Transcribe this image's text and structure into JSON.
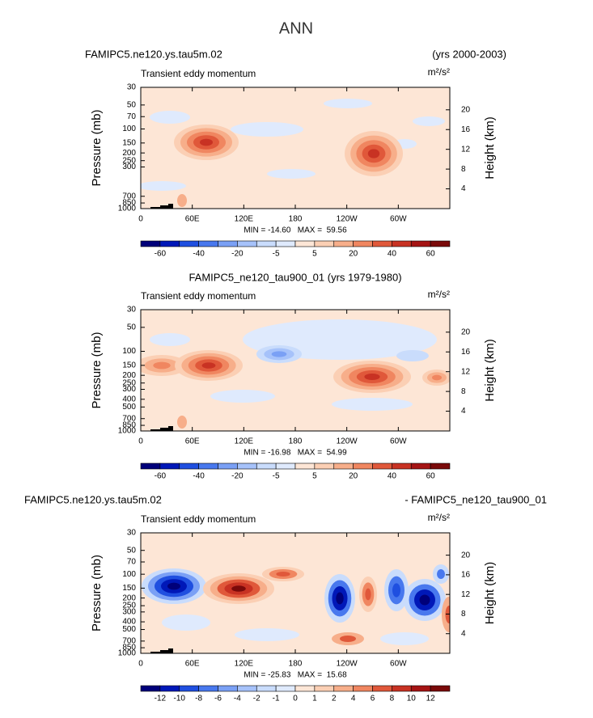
{
  "title": "ANN",
  "chart_data": [
    {
      "type": "contour",
      "title_left": "FAMIPC5.ne120.ys.tau5m.02",
      "title_right": "(yrs 2000-2003)",
      "subtitle": "Transient eddy momentum",
      "units": "m²/s²",
      "stats": "MIN = -14.60   MAX =  59.56",
      "x_ticks_label": null,
      "ylabel": "Pressure (mb)",
      "y2label": "Height (km)",
      "ylog": true,
      "xlim": [
        0,
        360
      ],
      "xticks": [
        0,
        {
          "value": 60,
          "label": "60E"
        },
        {
          "value": 120,
          "label": "120E"
        },
        180,
        {
          "value": 240,
          "label": "120W"
        },
        {
          "value": 300,
          "label": "60W"
        }
      ],
      "ylim": [
        1000,
        30
      ],
      "yticks": [
        30,
        50,
        70,
        100,
        150,
        200,
        250,
        300,
        700,
        850,
        1000
      ],
      "y2lim": [
        0,
        24.55
      ],
      "y2ticks": [
        4,
        8,
        12,
        16,
        20
      ],
      "levels": [
        -60,
        -50,
        -40,
        -30,
        -20,
        -10,
        -5,
        0,
        5,
        10,
        20,
        30,
        40,
        50,
        60
      ],
      "colorbar_ticks": [
        -60,
        -40,
        -20,
        -5,
        5,
        20,
        40,
        60
      ],
      "colors": [
        "#00007a",
        "#0018b8",
        "#1f4fe0",
        "#4878ee",
        "#7aa0f5",
        "#a6c2fa",
        "#c9dcfc",
        "#dfeafd",
        "#fde6d6",
        "#fbcfb4",
        "#f7ae8a",
        "#f08660",
        "#e0583a",
        "#c83223",
        "#a51414",
        "#7a0a0a"
      ]
    },
    {
      "type": "contour",
      "title": "FAMIPC5_ne120_tau900_01 (yrs 1979-1980)",
      "subtitle": "Transient eddy momentum",
      "units": "m²/s²",
      "stats": "MIN = -16.98   MAX =  54.99",
      "ylabel": "Pressure (mb)",
      "y2label": "Height (km)",
      "ylog": true,
      "xlim": [
        0,
        360
      ],
      "xticks": [
        0,
        {
          "value": 60,
          "label": "60E"
        },
        {
          "value": 120,
          "label": "120E"
        },
        180,
        {
          "value": 240,
          "label": "120W"
        },
        {
          "value": 300,
          "label": "60W"
        }
      ],
      "ylim": [
        1000,
        30
      ],
      "yticks": [
        30,
        50,
        100,
        150,
        200,
        250,
        300,
        400,
        500,
        700,
        850,
        1000
      ],
      "y2lim": [
        0,
        24.55
      ],
      "y2ticks": [
        4,
        8,
        12,
        16,
        20
      ],
      "levels": [
        -60,
        -50,
        -40,
        -30,
        -20,
        -10,
        -5,
        0,
        5,
        10,
        20,
        30,
        40,
        50,
        60
      ],
      "colorbar_ticks": [
        -60,
        -40,
        -20,
        -5,
        5,
        20,
        40,
        60
      ],
      "colors": [
        "#00007a",
        "#0018b8",
        "#1f4fe0",
        "#4878ee",
        "#7aa0f5",
        "#a6c2fa",
        "#c9dcfc",
        "#dfeafd",
        "#fde6d6",
        "#fbcfb4",
        "#f7ae8a",
        "#f08660",
        "#e0583a",
        "#c83223",
        "#a51414",
        "#7a0a0a"
      ]
    },
    {
      "type": "contour",
      "title_left": "FAMIPC5.ne120.ys.tau5m.02",
      "title_right": "- FAMIPC5_ne120_tau900_01",
      "subtitle": "Transient eddy momentum",
      "units": "m²/s²",
      "stats": "MIN = -25.83   MAX =  15.68",
      "ylabel": "Pressure (mb)",
      "y2label": "Height (km)",
      "ylog": true,
      "xlim": [
        0,
        360
      ],
      "xticks": [
        0,
        {
          "value": 60,
          "label": "60E"
        },
        {
          "value": 120,
          "label": "120E"
        },
        180,
        {
          "value": 240,
          "label": "120W"
        },
        {
          "value": 300,
          "label": "60W"
        }
      ],
      "ylim": [
        1000,
        30
      ],
      "yticks": [
        30,
        50,
        70,
        100,
        150,
        200,
        250,
        300,
        400,
        500,
        700,
        850,
        1000
      ],
      "y2lim": [
        0,
        24.55
      ],
      "y2ticks": [
        4,
        8,
        12,
        16,
        20
      ],
      "levels": [
        -12,
        -10,
        -8,
        -6,
        -4,
        -2,
        -1,
        0,
        1,
        2,
        4,
        6,
        8,
        10,
        12
      ],
      "colorbar_ticks": [
        -12,
        -10,
        -8,
        -6,
        -4,
        -2,
        -1,
        0,
        1,
        2,
        4,
        6,
        8,
        10,
        12
      ],
      "colors": [
        "#00007a",
        "#0018b8",
        "#1f4fe0",
        "#4878ee",
        "#7aa0f5",
        "#a6c2fa",
        "#c9dcfc",
        "#dfeafd",
        "#fde6d6",
        "#fbcfb4",
        "#f7ae8a",
        "#f08660",
        "#e0583a",
        "#c83223",
        "#a51414",
        "#7a0a0a"
      ]
    }
  ]
}
